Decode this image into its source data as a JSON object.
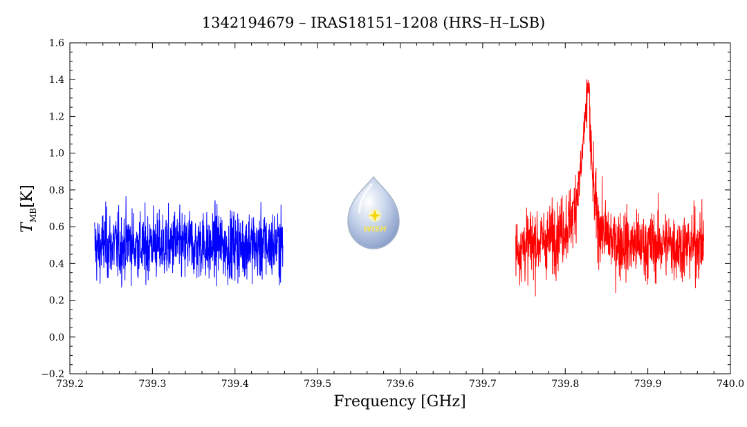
{
  "chart_data": {
    "type": "line",
    "title": "1342194679 – IRAS18151–1208 (HRS–H–LSB)",
    "xlabel": "Frequency [GHz]",
    "ylabel_main": "T",
    "ylabel_sub": "MB",
    "ylabel_unit": "[K]",
    "xlim": [
      739.2,
      740.0
    ],
    "ylim": [
      -0.2,
      1.6
    ],
    "xticks": [
      "739.2",
      "739.3",
      "739.4",
      "739.5",
      "739.6",
      "739.7",
      "739.8",
      "739.9",
      "740.0"
    ],
    "yticks": [
      "−0.2",
      "0.0",
      "0.2",
      "0.4",
      "0.6",
      "0.8",
      "1.0",
      "1.2",
      "1.4",
      "1.6"
    ],
    "grid": false,
    "logo_text": "WISH",
    "series": [
      {
        "color": "#0000ff",
        "x": [
          739.23,
          739.236,
          739.242,
          739.248,
          739.254,
          739.26,
          739.266,
          739.272,
          739.278,
          739.284,
          739.29,
          739.296,
          739.302,
          739.308,
          739.314,
          739.32,
          739.326,
          739.332,
          739.338,
          739.344,
          739.35,
          739.356,
          739.362,
          739.368,
          739.374,
          739.38,
          739.386,
          739.392,
          739.398,
          739.404,
          739.41,
          739.416,
          739.422,
          739.428,
          739.434,
          739.44,
          739.446,
          739.452,
          739.458
        ],
        "y": [
          0.5,
          0.47,
          0.52,
          0.49,
          0.51,
          0.48,
          0.5,
          0.53,
          0.49,
          0.5,
          0.47,
          0.51,
          0.52,
          0.48,
          0.5,
          0.49,
          0.51,
          0.5,
          0.48,
          0.52,
          0.49,
          0.5,
          0.51,
          0.47,
          0.5,
          0.52,
          0.49,
          0.48,
          0.51,
          0.5,
          0.49,
          0.52,
          0.5,
          0.48,
          0.51,
          0.49,
          0.5,
          0.51,
          0.5
        ],
        "noise_min": 0.02,
        "noise_max": 0.96
      },
      {
        "color": "#ff0000",
        "x": [
          739.74,
          739.75,
          739.76,
          739.77,
          739.78,
          739.79,
          739.8,
          739.805,
          739.81,
          739.815,
          739.82,
          739.824,
          739.828,
          739.832,
          739.836,
          739.84,
          739.845,
          739.85,
          739.86,
          739.87,
          739.88,
          739.89,
          739.9,
          739.91,
          739.92,
          739.93,
          739.94,
          739.95,
          739.96,
          739.968
        ],
        "y": [
          0.48,
          0.5,
          0.51,
          0.52,
          0.53,
          0.56,
          0.6,
          0.62,
          0.68,
          0.8,
          0.95,
          1.2,
          1.22,
          0.95,
          0.72,
          0.62,
          0.58,
          0.55,
          0.52,
          0.51,
          0.5,
          0.5,
          0.49,
          0.5,
          0.51,
          0.5,
          0.49,
          0.5,
          0.51,
          0.5
        ],
        "peak_max": 1.4,
        "noise_min": 0.06,
        "noise_max": 0.9
      }
    ]
  }
}
